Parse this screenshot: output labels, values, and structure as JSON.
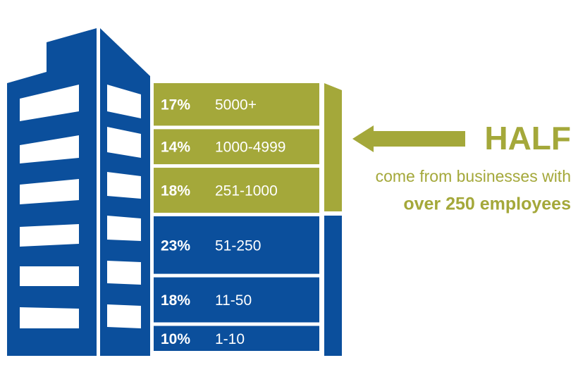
{
  "chart_data": {
    "type": "stacked-column",
    "categories": [
      "5000+",
      "1000-4999",
      "251-1000",
      "51-250",
      "11-50",
      "1-10"
    ],
    "values": [
      17,
      14,
      18,
      23,
      18,
      10
    ],
    "value_labels": [
      "17%",
      "14%",
      "18%",
      "23%",
      "18%",
      "10%"
    ],
    "colors": [
      "#a4a83a",
      "#a4a83a",
      "#a4a83a",
      "#0b4f9c",
      "#0b4f9c",
      "#0b4f9c"
    ],
    "annotations": [
      "HALF",
      "come from businesses with",
      "over 250 employees"
    ]
  }
}
